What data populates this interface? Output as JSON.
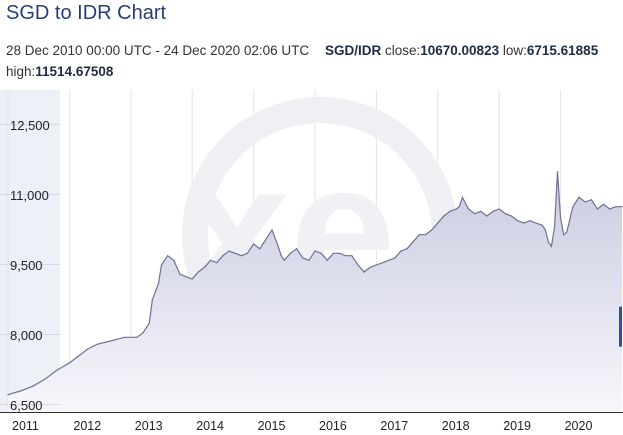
{
  "page": {
    "title": "SGD to IDR Chart",
    "range": "28 Dec 2010 00:00 UTC - 24 Dec 2020 02:06 UTC",
    "pair": "SGD/IDR",
    "close_label": "close:",
    "close": "10670.00823",
    "low_label": "low:",
    "low": "6715.61885",
    "high_label": "high:",
    "high": "11514.67508"
  },
  "chart_data": {
    "type": "area",
    "ylim": [
      6350,
      13250
    ],
    "yticks": [
      6500,
      8000,
      9500,
      11000,
      12500
    ],
    "ytick_labels": [
      "6,500",
      "8,000",
      "9,500",
      "11,000",
      "12,500"
    ],
    "xlim": [
      2011.0,
      2021.0
    ],
    "xticks": [
      2011,
      2012,
      2013,
      2014,
      2015,
      2016,
      2017,
      2018,
      2019,
      2020
    ],
    "xtick_labels": [
      "2011",
      "2012",
      "2013",
      "2014",
      "2015",
      "2016",
      "2017",
      "2018",
      "2019",
      "2020"
    ],
    "grid": "vertical",
    "watermark": "xe-logo",
    "colors": {
      "line": "#6e7192",
      "fill_top": "#c9cbe0",
      "fill_bottom": "#f7f7fb",
      "ybox": "#eef0f8"
    },
    "x": [
      2011.0,
      2011.2,
      2011.4,
      2011.6,
      2011.8,
      2012.0,
      2012.15,
      2012.3,
      2012.45,
      2012.6,
      2012.75,
      2012.9,
      2013.1,
      2013.2,
      2013.3,
      2013.35,
      2013.45,
      2013.5,
      2013.6,
      2013.7,
      2013.8,
      2013.9,
      2014.0,
      2014.1,
      2014.2,
      2014.3,
      2014.4,
      2014.5,
      2014.6,
      2014.7,
      2014.8,
      2014.9,
      2015.0,
      2015.1,
      2015.2,
      2015.3,
      2015.4,
      2015.45,
      2015.5,
      2015.6,
      2015.7,
      2015.8,
      2015.9,
      2016.0,
      2016.1,
      2016.2,
      2016.3,
      2016.4,
      2016.5,
      2016.6,
      2016.7,
      2016.8,
      2016.9,
      2017.0,
      2017.1,
      2017.2,
      2017.3,
      2017.4,
      2017.5,
      2017.6,
      2017.7,
      2017.8,
      2017.9,
      2018.0,
      2018.1,
      2018.2,
      2018.3,
      2018.35,
      2018.4,
      2018.5,
      2018.6,
      2018.7,
      2018.8,
      2018.9,
      2019.0,
      2019.1,
      2019.2,
      2019.3,
      2019.4,
      2019.5,
      2019.6,
      2019.7,
      2019.75,
      2019.8,
      2019.85,
      2019.9,
      2019.95,
      2020.0,
      2020.05,
      2020.1,
      2020.2,
      2020.3,
      2020.4,
      2020.5,
      2020.6,
      2020.7,
      2020.8,
      2020.9,
      2021.0
    ],
    "values": [
      6720,
      6800,
      6900,
      7050,
      7250,
      7400,
      7550,
      7700,
      7800,
      7850,
      7900,
      7950,
      7950,
      8050,
      8250,
      8750,
      9100,
      9500,
      9700,
      9600,
      9300,
      9250,
      9200,
      9350,
      9450,
      9600,
      9550,
      9700,
      9800,
      9750,
      9700,
      9750,
      9950,
      9850,
      10050,
      10250,
      9900,
      9700,
      9600,
      9750,
      9850,
      9650,
      9600,
      9800,
      9750,
      9600,
      9750,
      9750,
      9700,
      9700,
      9500,
      9350,
      9450,
      9500,
      9550,
      9600,
      9650,
      9800,
      9850,
      10000,
      10150,
      10150,
      10250,
      10400,
      10550,
      10650,
      10700,
      10750,
      10950,
      10700,
      10600,
      10650,
      10550,
      10650,
      10700,
      10600,
      10550,
      10450,
      10400,
      10450,
      10400,
      10350,
      10250,
      10000,
      9900,
      10300,
      11500,
      10500,
      10150,
      10200,
      10750,
      10950,
      10850,
      10900,
      10700,
      10800,
      10700,
      10750,
      10750
    ]
  }
}
